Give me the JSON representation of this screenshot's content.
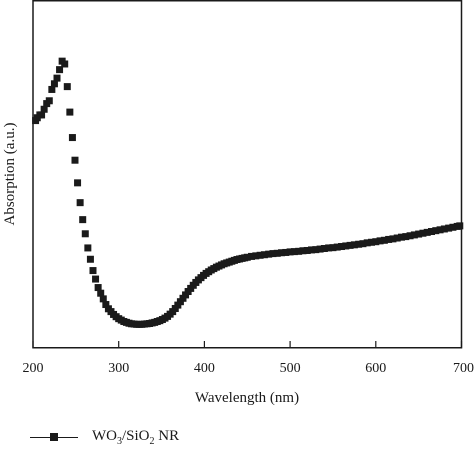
{
  "chart_data": {
    "type": "scatter",
    "title": "",
    "xlabel": "Wavelength (nm)",
    "ylabel": "Absorption (a.u.)",
    "xlim": [
      200,
      700
    ],
    "ylim": [
      0,
      1
    ],
    "x_ticks": [
      200,
      300,
      400,
      500,
      600,
      700
    ],
    "y_ticks_visible": false,
    "grid": false,
    "legend_position": "bottom-left",
    "series": [
      {
        "name": "WO3/SiO2 NR",
        "name_parts": {
          "a": "WO",
          "a_sub": "3",
          "b": "/SiO",
          "b_sub": "2",
          "c": " NR"
        },
        "color": "#1a1a1a",
        "marker": "square",
        "points": [
          [
            203,
            0.74
          ],
          [
            205,
            0.75
          ],
          [
            208,
            0.76
          ],
          [
            210,
            0.76
          ],
          [
            213,
            0.78
          ],
          [
            216,
            0.8
          ],
          [
            219,
            0.81
          ],
          [
            222,
            0.85
          ],
          [
            225,
            0.87
          ],
          [
            228,
            0.89
          ],
          [
            231,
            0.92
          ],
          [
            234,
            0.95
          ],
          [
            237,
            0.94
          ],
          [
            240,
            0.86
          ],
          [
            243,
            0.77
          ],
          [
            246,
            0.68
          ],
          [
            249,
            0.6
          ],
          [
            252,
            0.52
          ],
          [
            255,
            0.45
          ],
          [
            258,
            0.39
          ],
          [
            261,
            0.34
          ],
          [
            264,
            0.29
          ],
          [
            267,
            0.25
          ],
          [
            270,
            0.21
          ],
          [
            273,
            0.18
          ],
          [
            276,
            0.15
          ],
          [
            279,
            0.13
          ],
          [
            282,
            0.11
          ],
          [
            285,
            0.09
          ],
          [
            288,
            0.075
          ],
          [
            291,
            0.065
          ],
          [
            294,
            0.055
          ],
          [
            297,
            0.047
          ],
          [
            300,
            0.04
          ],
          [
            303,
            0.035
          ],
          [
            306,
            0.03
          ],
          [
            309,
            0.027
          ],
          [
            312,
            0.024
          ],
          [
            315,
            0.022
          ],
          [
            318,
            0.021
          ],
          [
            321,
            0.02
          ],
          [
            324,
            0.02
          ],
          [
            327,
            0.02
          ],
          [
            330,
            0.021
          ],
          [
            333,
            0.022
          ],
          [
            336,
            0.023
          ],
          [
            339,
            0.025
          ],
          [
            342,
            0.027
          ],
          [
            345,
            0.03
          ],
          [
            348,
            0.033
          ],
          [
            351,
            0.037
          ],
          [
            354,
            0.042
          ],
          [
            357,
            0.048
          ],
          [
            360,
            0.056
          ],
          [
            363,
            0.065
          ],
          [
            366,
            0.076
          ],
          [
            369,
            0.088
          ],
          [
            372,
            0.1
          ],
          [
            375,
            0.112
          ],
          [
            378,
            0.124
          ],
          [
            381,
            0.136
          ],
          [
            384,
            0.147
          ],
          [
            387,
            0.158
          ],
          [
            390,
            0.168
          ],
          [
            393,
            0.177
          ],
          [
            396,
            0.185
          ],
          [
            399,
            0.193
          ],
          [
            402,
            0.2
          ],
          [
            405,
            0.206
          ],
          [
            408,
            0.212
          ],
          [
            411,
            0.217
          ],
          [
            414,
            0.222
          ],
          [
            417,
            0.226
          ],
          [
            420,
            0.23
          ],
          [
            423,
            0.234
          ],
          [
            426,
            0.237
          ],
          [
            429,
            0.24
          ],
          [
            432,
            0.243
          ],
          [
            435,
            0.246
          ],
          [
            438,
            0.249
          ],
          [
            441,
            0.251
          ],
          [
            444,
            0.253
          ],
          [
            447,
            0.255
          ],
          [
            450,
            0.257
          ],
          [
            455,
            0.26
          ],
          [
            460,
            0.262
          ],
          [
            465,
            0.264
          ],
          [
            470,
            0.266
          ],
          [
            475,
            0.268
          ],
          [
            480,
            0.27
          ],
          [
            485,
            0.271
          ],
          [
            490,
            0.273
          ],
          [
            495,
            0.274
          ],
          [
            500,
            0.276
          ],
          [
            505,
            0.277
          ],
          [
            510,
            0.278
          ],
          [
            515,
            0.28
          ],
          [
            520,
            0.281
          ],
          [
            525,
            0.283
          ],
          [
            530,
            0.284
          ],
          [
            535,
            0.286
          ],
          [
            540,
            0.288
          ],
          [
            545,
            0.29
          ],
          [
            550,
            0.291
          ],
          [
            555,
            0.293
          ],
          [
            560,
            0.295
          ],
          [
            565,
            0.297
          ],
          [
            570,
            0.299
          ],
          [
            575,
            0.301
          ],
          [
            580,
            0.303
          ],
          [
            585,
            0.305
          ],
          [
            590,
            0.308
          ],
          [
            595,
            0.31
          ],
          [
            600,
            0.312
          ],
          [
            605,
            0.315
          ],
          [
            610,
            0.317
          ],
          [
            615,
            0.32
          ],
          [
            620,
            0.322
          ],
          [
            625,
            0.325
          ],
          [
            630,
            0.328
          ],
          [
            635,
            0.33
          ],
          [
            640,
            0.333
          ],
          [
            645,
            0.336
          ],
          [
            650,
            0.339
          ],
          [
            655,
            0.342
          ],
          [
            660,
            0.345
          ],
          [
            665,
            0.348
          ],
          [
            670,
            0.351
          ],
          [
            675,
            0.354
          ],
          [
            680,
            0.357
          ],
          [
            685,
            0.36
          ],
          [
            690,
            0.363
          ],
          [
            695,
            0.366
          ],
          [
            698,
            0.368
          ]
        ]
      }
    ]
  }
}
